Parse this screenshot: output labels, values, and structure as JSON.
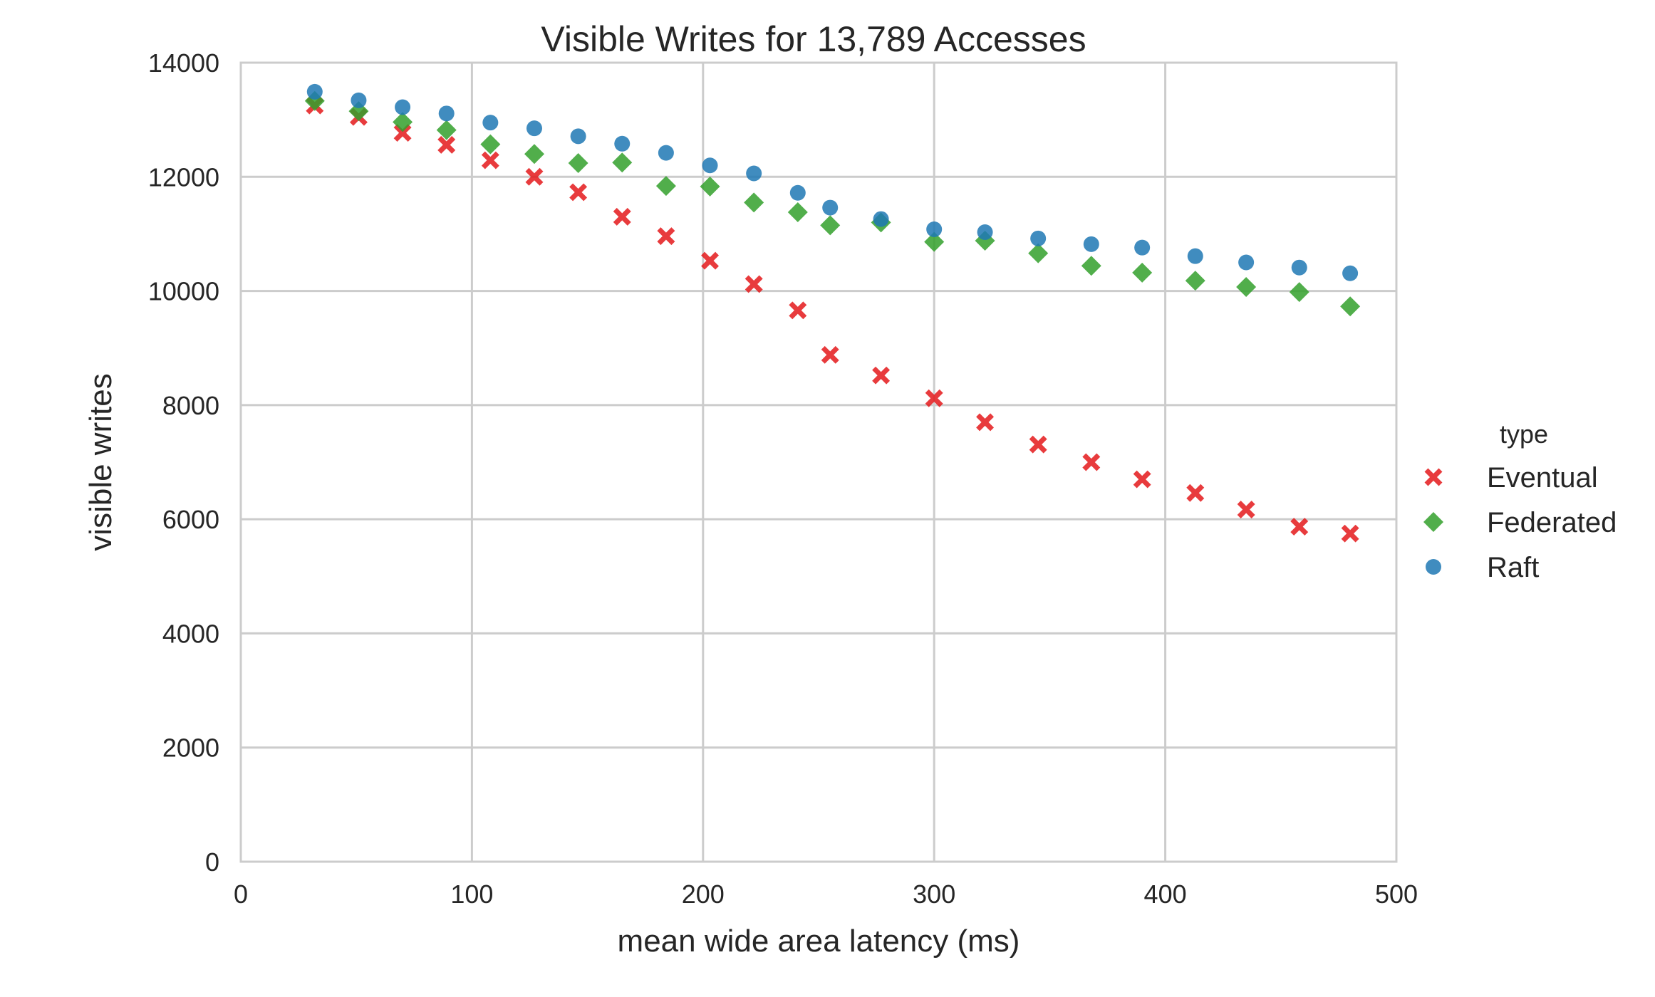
{
  "chart_data": {
    "type": "scatter",
    "title": "Visible Writes for 13,789 Accesses",
    "xlabel": "mean wide area latency (ms)",
    "ylabel": "visible writes",
    "xlim": [
      0,
      500
    ],
    "ylim": [
      0,
      14000
    ],
    "xticks": [
      "0",
      "100",
      "200",
      "300",
      "400",
      "500"
    ],
    "yticks": [
      "0",
      "2000",
      "4000",
      "6000",
      "8000",
      "10000",
      "12000",
      "14000"
    ],
    "grid": true,
    "legend": {
      "title": "type",
      "placement": "right"
    },
    "series": [
      {
        "name": "Eventual",
        "marker": "x",
        "color": "#e41a1c",
        "x": [
          32,
          51,
          70,
          89,
          108,
          127,
          146,
          165,
          184,
          203,
          222,
          241,
          255,
          277,
          300,
          322,
          345,
          368,
          390,
          413,
          435,
          458,
          480
        ],
        "y": [
          13250,
          13050,
          12770,
          12560,
          12290,
          12000,
          11730,
          11300,
          10960,
          10530,
          10120,
          9660,
          8880,
          8520,
          8120,
          7700,
          7310,
          7000,
          6700,
          6460,
          6170,
          5870,
          5750
        ]
      },
      {
        "name": "Federated",
        "marker": "diamond",
        "color": "#33a02c",
        "x": [
          32,
          51,
          70,
          89,
          108,
          127,
          146,
          165,
          184,
          203,
          222,
          241,
          255,
          277,
          300,
          322,
          345,
          368,
          390,
          413,
          435,
          458,
          480
        ],
        "y": [
          13330,
          13150,
          12960,
          12820,
          12570,
          12400,
          12240,
          12250,
          11840,
          11830,
          11550,
          11380,
          11150,
          11200,
          10860,
          10880,
          10660,
          10440,
          10320,
          10180,
          10070,
          9980,
          9730
        ]
      },
      {
        "name": "Raft",
        "marker": "circle",
        "color": "#1f78b4",
        "x": [
          32,
          51,
          70,
          89,
          108,
          127,
          146,
          165,
          184,
          203,
          222,
          241,
          255,
          277,
          300,
          322,
          345,
          368,
          390,
          413,
          435,
          458,
          480
        ],
        "y": [
          13490,
          13340,
          13220,
          13110,
          12950,
          12850,
          12710,
          12580,
          12420,
          12200,
          12060,
          11720,
          11460,
          11260,
          11080,
          11030,
          10920,
          10820,
          10760,
          10610,
          10500,
          10410,
          10310
        ]
      }
    ]
  }
}
